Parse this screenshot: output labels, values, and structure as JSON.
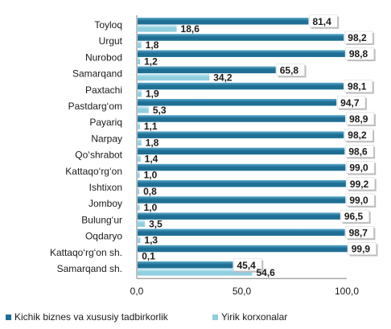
{
  "chart_data": {
    "type": "bar",
    "orientation": "horizontal",
    "categories": [
      "Toyloq",
      "Urgut",
      "Nurobod",
      "Samarqand",
      "Paxtachi",
      "Pastdarg‘om",
      "Payariq",
      "Narpay",
      "Qo‘shrabot",
      "Kattaqo‘rg‘on",
      "Ishtixon",
      "Jomboy",
      "Bulung‘ur",
      "Oqdaryo",
      "Kattaqo‘rg‘on  sh.",
      "Samarqand sh."
    ],
    "series": [
      {
        "name": "Kichik biznes va xususiy tadbirkorlik",
        "color": "#1f6f95",
        "values": [
          81.4,
          98.2,
          98.8,
          65.8,
          98.1,
          94.7,
          98.9,
          98.2,
          98.6,
          99.0,
          99.2,
          99.0,
          96.5,
          98.7,
          99.9,
          45.4
        ],
        "labels": [
          "81,4",
          "98,2",
          "98,8",
          "65,8",
          "98,1",
          "94,7",
          "98,9",
          "98,2",
          "98,6",
          "99,0",
          "99,2",
          "99,0",
          "96,5",
          "98,7",
          "99,9",
          "45,4"
        ]
      },
      {
        "name": "Yirik korxonalar",
        "color": "#8fcfe0",
        "values": [
          18.6,
          1.8,
          1.2,
          34.2,
          1.9,
          5.3,
          1.1,
          1.8,
          1.4,
          1.0,
          0.8,
          1.0,
          3.5,
          1.3,
          0.1,
          54.6
        ],
        "labels": [
          "18,6",
          "1,8",
          "1,2",
          "34,2",
          "1,9",
          "5,3",
          "1,1",
          "1,8",
          "1,4",
          "1,0",
          "0,8",
          "1,0",
          "3,5",
          "1,3",
          "0,1",
          "54,6"
        ]
      }
    ],
    "xlim": [
      0,
      100
    ],
    "xticks": [
      "0,0",
      "50,0",
      "100,0"
    ],
    "legend_position": "bottom",
    "grid": false
  }
}
